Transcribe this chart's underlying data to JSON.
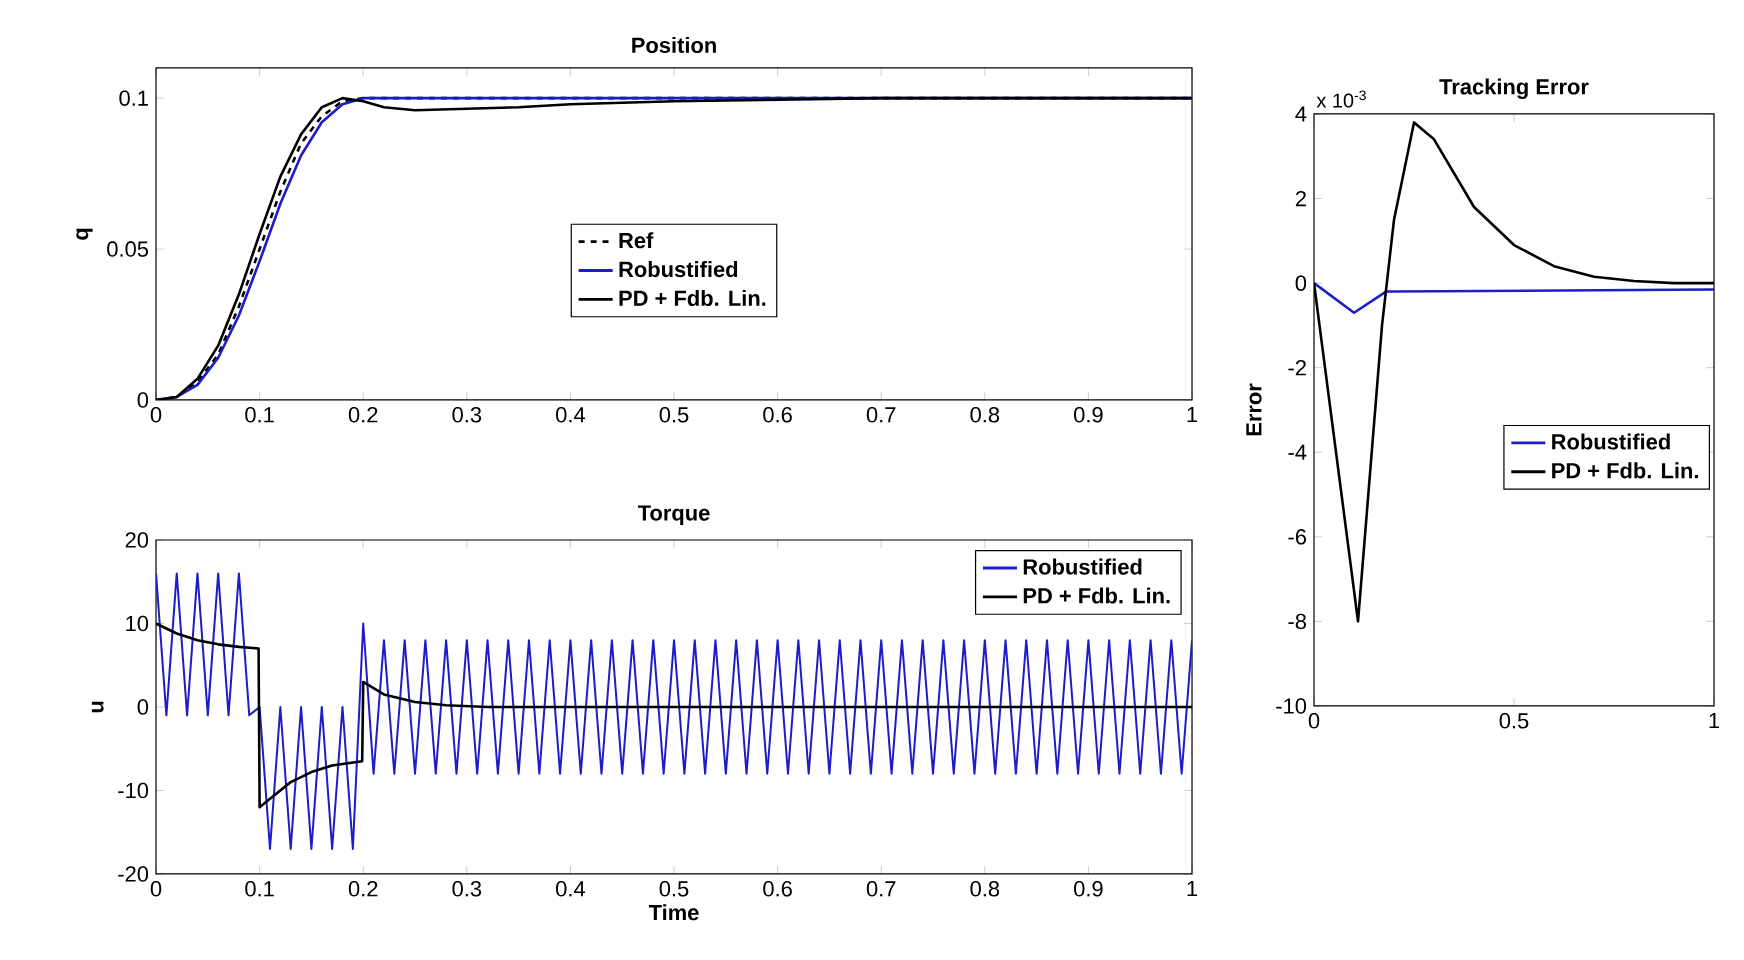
{
  "chart_data": [
    {
      "type": "line",
      "title": "Position",
      "ylabel": "q",
      "xlim": [
        0,
        1
      ],
      "ylim": [
        0,
        0.11
      ],
      "xticks": [
        0,
        0.1,
        0.2,
        0.3,
        0.4,
        0.5,
        0.6,
        0.7,
        0.8,
        0.9,
        1
      ],
      "yticks": [
        0,
        0.05,
        0.1
      ],
      "legend": "center",
      "grid": false,
      "series": [
        {
          "name": "Ref",
          "color": "#000000",
          "line_style": "dashed",
          "x": [
            0,
            0.02,
            0.04,
            0.06,
            0.08,
            0.1,
            0.12,
            0.14,
            0.16,
            0.18,
            0.2,
            1
          ],
          "values": [
            0,
            0.001,
            0.006,
            0.015,
            0.031,
            0.05,
            0.069,
            0.085,
            0.094,
            0.099,
            0.1,
            0.1
          ]
        },
        {
          "name": "Robustified",
          "color": "#1c1cc8",
          "line_style": "solid",
          "x": [
            0,
            0.02,
            0.04,
            0.06,
            0.08,
            0.1,
            0.12,
            0.14,
            0.16,
            0.18,
            0.2,
            1
          ],
          "values": [
            0,
            0.001,
            0.005,
            0.014,
            0.028,
            0.046,
            0.065,
            0.081,
            0.092,
            0.098,
            0.1,
            0.1
          ]
        },
        {
          "name": "PD + Fdb. Lin.",
          "color": "#000000",
          "line_style": "solid",
          "x": [
            0,
            0.02,
            0.04,
            0.06,
            0.08,
            0.1,
            0.12,
            0.14,
            0.16,
            0.18,
            0.2,
            0.22,
            0.25,
            0.3,
            0.35,
            0.4,
            0.5,
            0.6,
            0.7,
            1
          ],
          "values": [
            0,
            0.001,
            0.007,
            0.018,
            0.035,
            0.055,
            0.074,
            0.088,
            0.097,
            0.1,
            0.099,
            0.097,
            0.096,
            0.0965,
            0.097,
            0.098,
            0.099,
            0.0995,
            0.1,
            0.1
          ]
        }
      ]
    },
    {
      "type": "line",
      "title": "Torque",
      "xlabel": "Time",
      "ylabel": "u",
      "xlim": [
        0,
        1
      ],
      "ylim": [
        -20,
        20
      ],
      "xticks": [
        0,
        0.1,
        0.2,
        0.3,
        0.4,
        0.5,
        0.6,
        0.7,
        0.8,
        0.9,
        1
      ],
      "yticks": [
        -20,
        -10,
        0,
        10,
        20
      ],
      "legend": "top right",
      "grid": false,
      "series": [
        {
          "name": "Robustified",
          "color": "#1c1cc8",
          "line_style": "solid",
          "x": [
            0,
            0.01,
            0.02,
            0.03,
            0.04,
            0.05,
            0.06,
            0.07,
            0.08,
            0.09,
            0.1,
            0.11,
            0.12,
            0.13,
            0.14,
            0.15,
            0.16,
            0.17,
            0.18,
            0.19,
            0.2,
            0.21,
            0.22,
            0.23,
            0.24,
            0.25,
            0.26,
            0.27,
            0.28,
            0.29,
            0.3,
            0.31,
            0.32,
            0.33,
            0.34,
            0.35,
            0.36,
            0.37,
            0.38,
            0.39,
            0.4,
            0.41,
            0.42,
            0.43,
            0.44,
            0.45,
            0.46,
            0.47,
            0.48,
            0.49,
            0.5,
            0.51,
            0.52,
            0.53,
            0.54,
            0.55,
            0.56,
            0.57,
            0.58,
            0.59,
            0.6,
            0.61,
            0.62,
            0.63,
            0.64,
            0.65,
            0.66,
            0.67,
            0.68,
            0.69,
            0.7,
            0.71,
            0.72,
            0.73,
            0.74,
            0.75,
            0.76,
            0.77,
            0.78,
            0.79,
            0.8,
            0.81,
            0.82,
            0.83,
            0.84,
            0.85,
            0.86,
            0.87,
            0.88,
            0.89,
            0.9,
            0.91,
            0.92,
            0.93,
            0.94,
            0.95,
            0.96,
            0.97,
            0.98,
            0.99,
            1
          ],
          "values": [
            16,
            -1,
            16,
            -1,
            16,
            -1,
            16,
            -1,
            16,
            -1,
            0,
            -17,
            0,
            -17,
            0,
            -17,
            0,
            -17,
            0,
            -17,
            10,
            -8,
            8,
            -8,
            8,
            -8,
            8,
            -8,
            8,
            -8,
            8,
            -8,
            8,
            -8,
            8,
            -8,
            8,
            -8,
            8,
            -8,
            8,
            -8,
            8,
            -8,
            8,
            -8,
            8,
            -8,
            8,
            -8,
            8,
            -8,
            8,
            -8,
            8,
            -8,
            8,
            -8,
            8,
            -8,
            8,
            -8,
            8,
            -8,
            8,
            -8,
            8,
            -8,
            8,
            -8,
            8,
            -8,
            8,
            -8,
            8,
            -8,
            8,
            -8,
            8,
            -8,
            8,
            -8,
            8,
            -8,
            8,
            -8,
            8,
            -8,
            8,
            -8,
            8,
            -8,
            8,
            -8,
            8,
            -8,
            8,
            -8,
            8,
            -8,
            8
          ]
        },
        {
          "name": "PD + Fdb. Lin.",
          "color": "#000000",
          "line_style": "solid",
          "x": [
            0,
            0.02,
            0.04,
            0.06,
            0.08,
            0.099,
            0.1,
            0.11,
            0.13,
            0.15,
            0.17,
            0.199,
            0.2,
            0.22,
            0.25,
            0.28,
            0.32,
            0.4,
            1
          ],
          "values": [
            10,
            8.8,
            8,
            7.5,
            7.2,
            7,
            -12,
            -11,
            -9,
            -7.8,
            -7,
            -6.5,
            3,
            1.5,
            0.6,
            0.2,
            0,
            0,
            0
          ]
        }
      ]
    },
    {
      "type": "line",
      "title": "Tracking Error",
      "ylabel": "Error",
      "annotations": [
        "x 10$^{-3}$"
      ],
      "xlim": [
        0,
        1
      ],
      "ylim": [
        -10,
        4
      ],
      "xticks": [
        0,
        0.5,
        1
      ],
      "yticks": [
        -10,
        -8,
        -6,
        -4,
        -2,
        0,
        2,
        4
      ],
      "legend": "right",
      "grid": false,
      "series": [
        {
          "name": "Robustified",
          "color": "#1c1cc8",
          "line_style": "solid",
          "x": [
            0,
            0.1,
            0.18,
            0.2,
            1
          ],
          "values": [
            0,
            -0.7,
            -0.2,
            -0.2,
            -0.15
          ]
        },
        {
          "name": "PD + Fdb. Lin.",
          "color": "#000000",
          "line_style": "solid",
          "x": [
            0,
            0.11,
            0.17,
            0.2,
            0.25,
            0.3,
            0.35,
            0.4,
            0.5,
            0.6,
            0.7,
            0.8,
            0.9,
            1
          ],
          "values": [
            0,
            -8,
            -1,
            1.5,
            3.8,
            3.4,
            2.6,
            1.8,
            0.9,
            0.4,
            0.15,
            0.05,
            0,
            0
          ]
        }
      ]
    }
  ]
}
